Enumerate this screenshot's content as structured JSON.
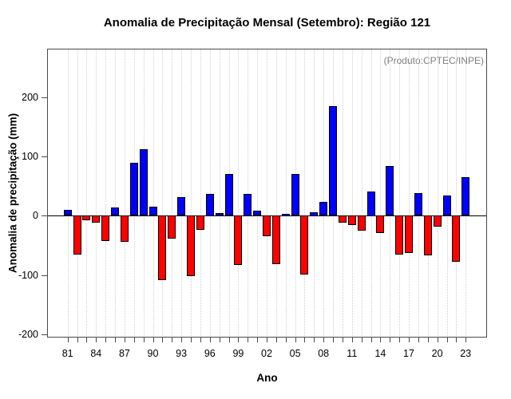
{
  "header": {
    "title": "Anomalia de Precipitação Mensal (Setembro): Região 121"
  },
  "annotation": "(Produto:CPTEC/INPE)",
  "colors": {
    "positive_bar": "#0000ff",
    "negative_bar": "#ff0000",
    "bar_border": "#000000",
    "annotation_text": "#7f7f7f",
    "gridline": "#cfcfcf"
  },
  "chart_data": {
    "type": "bar",
    "title": "Anomalia de Precipitação Mensal (Setembro): Região 121",
    "xlabel": "Ano",
    "ylabel": "Anomalia de precipitação (mm)",
    "annotation": "(Produto:CPTEC/INPE)",
    "years": [
      1981,
      1982,
      1983,
      1984,
      1985,
      1986,
      1987,
      1988,
      1989,
      1990,
      1991,
      1992,
      1993,
      1994,
      1995,
      1996,
      1997,
      1998,
      1999,
      2000,
      2001,
      2002,
      2003,
      2004,
      2005,
      2006,
      2007,
      2008,
      2009,
      2010,
      2011,
      2012,
      2013,
      2014,
      2015,
      2016,
      2017,
      2018,
      2019,
      2020,
      2021,
      2022,
      2023
    ],
    "year_labels": [
      "81",
      "82",
      "83",
      "84",
      "85",
      "86",
      "87",
      "88",
      "89",
      "90",
      "91",
      "92",
      "93",
      "94",
      "95",
      "96",
      "97",
      "98",
      "99",
      "00",
      "01",
      "02",
      "03",
      "04",
      "05",
      "06",
      "07",
      "08",
      "09",
      "10",
      "11",
      "12",
      "13",
      "14",
      "15",
      "16",
      "17",
      "18",
      "19",
      "20",
      "21",
      "22",
      "23"
    ],
    "values": [
      10,
      -65,
      -7,
      -11,
      -42,
      14,
      -44,
      90,
      112,
      15,
      -108,
      -38,
      32,
      -102,
      -24,
      37,
      5,
      71,
      -83,
      37,
      9,
      -34,
      -81,
      4,
      71,
      -99,
      6,
      23,
      185,
      -11,
      -16,
      -25,
      41,
      -29,
      84,
      -65,
      -63,
      38,
      -67,
      -19,
      34,
      -78,
      65
    ],
    "shown_tick_labels": [
      "81",
      "84",
      "87",
      "90",
      "93",
      "96",
      "99",
      "02",
      "05",
      "08",
      "11",
      "14",
      "17",
      "20",
      "23"
    ],
    "label_every": 3,
    "yticks": [
      -200,
      -100,
      0,
      100,
      200
    ],
    "ylim": [
      -205.4,
      282
    ],
    "grid": "vertical-dotted",
    "legend": "none",
    "positive_color": "#0000ff",
    "negative_color": "#ff0000"
  }
}
